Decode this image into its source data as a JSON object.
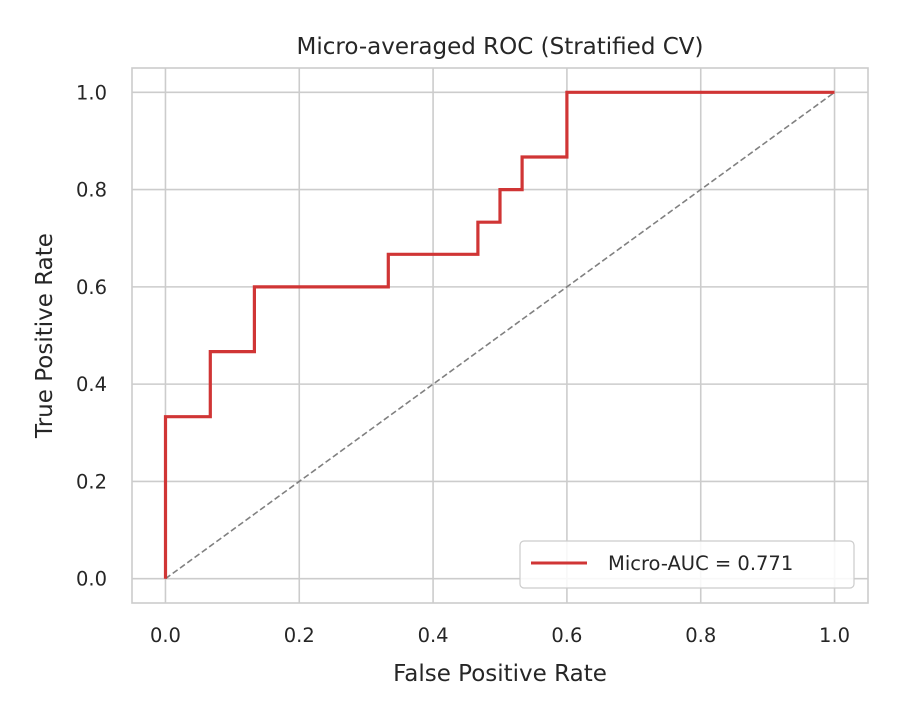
{
  "chart_data": {
    "type": "line",
    "title": "Micro-averaged ROC (Stratified CV)",
    "xlabel": "False Positive Rate",
    "ylabel": "True Positive Rate",
    "xlim": [
      -0.05,
      1.05
    ],
    "ylim": [
      -0.05,
      1.05
    ],
    "xticks": [
      0.0,
      0.2,
      0.4,
      0.6,
      0.8,
      1.0
    ],
    "yticks": [
      0.0,
      0.2,
      0.4,
      0.6,
      0.8,
      1.0
    ],
    "xtick_labels": [
      "0.0",
      "0.2",
      "0.4",
      "0.6",
      "0.8",
      "1.0"
    ],
    "ytick_labels": [
      "0.0",
      "0.2",
      "0.4",
      "0.6",
      "0.8",
      "1.0"
    ],
    "grid": true,
    "legend_position": "lower-right",
    "series": [
      {
        "name": "Micro-AUC = 0.771",
        "color": "#d03535",
        "style": "step",
        "x": [
          0.0,
          0.0,
          0.067,
          0.067,
          0.133,
          0.133,
          0.333,
          0.333,
          0.467,
          0.467,
          0.5,
          0.5,
          0.533,
          0.533,
          0.6,
          0.6,
          1.0
        ],
        "y": [
          0.0,
          0.333,
          0.333,
          0.467,
          0.467,
          0.6,
          0.6,
          0.667,
          0.667,
          0.733,
          0.733,
          0.8,
          0.8,
          0.867,
          0.867,
          1.0,
          1.0
        ]
      }
    ],
    "reference_line": {
      "x": [
        0.0,
        1.0
      ],
      "y": [
        0.0,
        1.0
      ],
      "color": "#808080",
      "style": "dashed"
    }
  }
}
